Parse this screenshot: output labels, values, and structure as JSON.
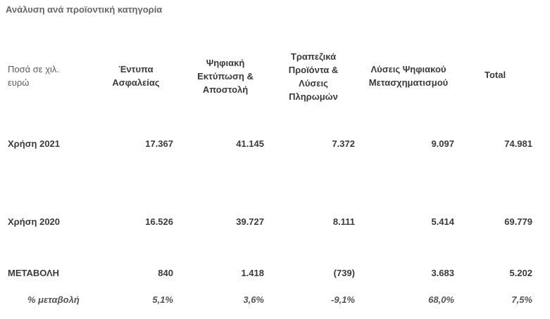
{
  "title": "Ανάλυση ανά προϊοντική κατηγορία",
  "table": {
    "units_label": "Ποσά σε χιλ.\nευρώ",
    "columns": [
      "Έντυπα\nΑσφαλείας",
      "Ψηφιακή\nΕκτύπωση &\nΑποστολή",
      "Τραπεζικά\nΠροϊόντα &\nΛύσεις\nΠληρωμών",
      "Λύσεις Ψηφιακού\nΜετασχηματισμού",
      "Total"
    ],
    "rows": [
      {
        "label": "Χρήση 2021",
        "values": [
          "17.367",
          "41.145",
          "7.372",
          "9.097",
          "74.981"
        ]
      },
      {
        "label": "Χρήση 2020",
        "values": [
          "16.526",
          "39.727",
          "8.111",
          "5.414",
          "69.779"
        ]
      },
      {
        "label": "ΜΕΤΑΒΟΛΗ",
        "values": [
          "840",
          "1.418",
          "(739)",
          "3.683",
          "5.202"
        ]
      },
      {
        "label": "% μεταβολή",
        "values": [
          "5,1%",
          "3,6%",
          "-9,1%",
          "68,0%",
          "7,5%"
        ]
      }
    ]
  }
}
